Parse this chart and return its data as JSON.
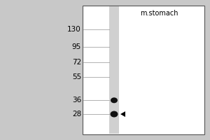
{
  "bg_color": "#c8c8c8",
  "panel_bg": "#ffffff",
  "title": "m.stomach",
  "mw_labels": [
    "130",
    "95",
    "72",
    "55",
    "36",
    "28"
  ],
  "mw_positions": [
    130,
    95,
    72,
    55,
    36,
    28
  ],
  "band1_mw": 36,
  "band2_mw": 28,
  "title_fontsize": 7,
  "label_fontsize": 7.5
}
